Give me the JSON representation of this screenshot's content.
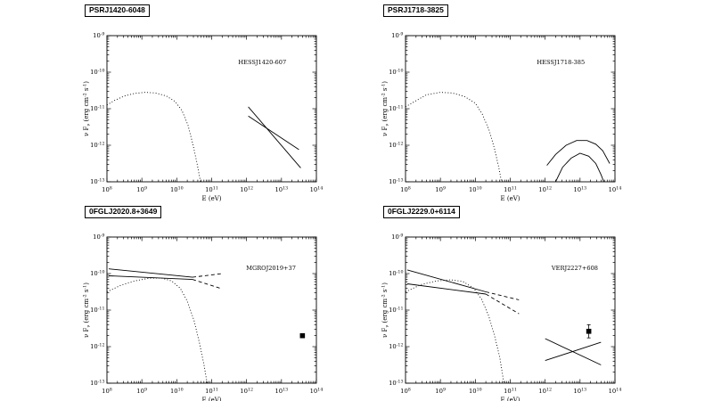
{
  "figure": {
    "layout": "2x2",
    "background": "#ffffff",
    "line_color": "#000000"
  },
  "chart_data": [
    {
      "type": "line",
      "title": "PSRJ1420-6048",
      "annotation": {
        "text": "HESSJ1420-607",
        "x": 12.45,
        "y": -9.78
      },
      "xlabel": "E (eV)",
      "ylabel": "ν F_{ν} (erg cm^{-2} s^{-1})",
      "xlim": [
        8,
        14
      ],
      "ylim": [
        -13,
        -9
      ],
      "xtick_labels": [
        "10^{8}",
        "10^{9}",
        "10^{10}",
        "10^{11}",
        "10^{12}",
        "10^{13}",
        "10^{14}"
      ],
      "ytick_labels": [
        "10^{-9}",
        "10^{-10}",
        "10^{-11}",
        "10^{-12}",
        "10^{-13}"
      ],
      "series": [
        {
          "name": "pulsar-sed-model",
          "style": "dotted",
          "points": [
            [
              8.0,
              -10.9
            ],
            [
              8.2,
              -10.78
            ],
            [
              8.5,
              -10.65
            ],
            [
              8.8,
              -10.58
            ],
            [
              9.1,
              -10.55
            ],
            [
              9.4,
              -10.57
            ],
            [
              9.7,
              -10.65
            ],
            [
              9.95,
              -10.8
            ],
            [
              10.15,
              -11.05
            ],
            [
              10.32,
              -11.45
            ],
            [
              10.47,
              -12.0
            ],
            [
              10.58,
              -12.5
            ],
            [
              10.68,
              -13.0
            ]
          ]
        },
        {
          "name": "hess-band-upper",
          "style": "solid",
          "points": [
            [
              12.05,
              -10.95
            ],
            [
              13.55,
              -12.62
            ]
          ]
        },
        {
          "name": "hess-band-lower",
          "style": "solid",
          "points": [
            [
              12.05,
              -11.2
            ],
            [
              13.5,
              -12.12
            ]
          ]
        }
      ]
    },
    {
      "type": "line",
      "title": "PSRJ1718-3825",
      "annotation": {
        "text": "HESSJ1718-385",
        "x": 12.45,
        "y": -9.78
      },
      "xlabel": "E (eV)",
      "ylabel": "ν F_{ν} (erg cm^{-2} s^{-1})",
      "xlim": [
        8,
        14
      ],
      "ylim": [
        -13,
        -9
      ],
      "xtick_labels": [
        "10^{8}",
        "10^{9}",
        "10^{10}",
        "10^{11}",
        "10^{12}",
        "10^{13}",
        "10^{14}"
      ],
      "ytick_labels": [
        "10^{-9}",
        "10^{-10}",
        "10^{-11}",
        "10^{-12}",
        "10^{-13}"
      ],
      "series": [
        {
          "name": "pulsar-sed-model",
          "style": "dotted",
          "points": [
            [
              8.0,
              -10.95
            ],
            [
              8.3,
              -10.78
            ],
            [
              8.6,
              -10.62
            ],
            [
              9.0,
              -10.55
            ],
            [
              9.35,
              -10.57
            ],
            [
              9.7,
              -10.67
            ],
            [
              10.0,
              -10.85
            ],
            [
              10.2,
              -11.15
            ],
            [
              10.4,
              -11.6
            ],
            [
              10.55,
              -12.1
            ],
            [
              10.67,
              -12.6
            ],
            [
              10.75,
              -13.0
            ]
          ]
        },
        {
          "name": "hess-band-upper",
          "style": "solid",
          "points": [
            [
              12.05,
              -12.55
            ],
            [
              12.3,
              -12.25
            ],
            [
              12.6,
              -12.0
            ],
            [
              12.9,
              -11.87
            ],
            [
              13.2,
              -11.87
            ],
            [
              13.45,
              -11.97
            ],
            [
              13.65,
              -12.15
            ],
            [
              13.85,
              -12.5
            ]
          ]
        },
        {
          "name": "hess-band-lower",
          "style": "solid",
          "points": [
            [
              12.3,
              -13.0
            ],
            [
              12.5,
              -12.6
            ],
            [
              12.75,
              -12.35
            ],
            [
              13.0,
              -12.22
            ],
            [
              13.25,
              -12.3
            ],
            [
              13.45,
              -12.5
            ],
            [
              13.6,
              -12.8
            ],
            [
              13.68,
              -13.0
            ]
          ]
        }
      ]
    },
    {
      "type": "line",
      "title": "0FGLJ2020.8+3649",
      "annotation": {
        "text": "MGROJ2019+37",
        "x": 12.7,
        "y": -9.9
      },
      "xlabel": "E (eV)",
      "ylabel": "ν F_{ν} (erg cm^{-2} s^{-1})",
      "xlim": [
        8,
        14
      ],
      "ylim": [
        -13,
        -9
      ],
      "xtick_labels": [
        "10^{8}",
        "10^{9}",
        "10^{10}",
        "10^{11}",
        "10^{12}",
        "10^{13}",
        "10^{14}"
      ],
      "ytick_labels": [
        "10^{-9}",
        "10^{-10}",
        "10^{-11}",
        "10^{-12}",
        "10^{-13}"
      ],
      "series": [
        {
          "name": "pulsar-sed-model",
          "style": "dotted",
          "points": [
            [
              8.0,
              -10.5
            ],
            [
              8.4,
              -10.32
            ],
            [
              8.8,
              -10.2
            ],
            [
              9.2,
              -10.13
            ],
            [
              9.55,
              -10.12
            ],
            [
              9.85,
              -10.2
            ],
            [
              10.1,
              -10.4
            ],
            [
              10.3,
              -10.75
            ],
            [
              10.5,
              -11.3
            ],
            [
              10.65,
              -11.9
            ],
            [
              10.78,
              -12.5
            ],
            [
              10.87,
              -13.0
            ]
          ]
        },
        {
          "name": "fermi-butterfly-upper",
          "style": "solid",
          "points": [
            [
              8.05,
              -9.87
            ],
            [
              10.45,
              -10.1
            ]
          ]
        },
        {
          "name": "fermi-butterfly-lower",
          "style": "solid",
          "points": [
            [
              8.05,
              -10.06
            ],
            [
              10.45,
              -10.16
            ]
          ]
        },
        {
          "name": "fermi-butterfly-ext-upper",
          "style": "dashed",
          "points": [
            [
              10.45,
              -10.1
            ],
            [
              11.3,
              -10.0
            ]
          ]
        },
        {
          "name": "fermi-butterfly-ext-lower",
          "style": "dashed",
          "points": [
            [
              10.45,
              -10.16
            ],
            [
              11.3,
              -10.42
            ]
          ]
        },
        {
          "name": "milagro-point",
          "style": "square",
          "points": [
            [
              13.6,
              -11.7
            ]
          ]
        }
      ]
    },
    {
      "type": "line",
      "title": "0FGLJ2229.0+6114",
      "annotation": {
        "text": "VERJ2227+608",
        "x": 12.85,
        "y": -9.9
      },
      "xlabel": "E (eV)",
      "ylabel": "ν F_{ν} (erg cm^{-2} s^{-1})",
      "xlim": [
        8,
        14
      ],
      "ylim": [
        -13,
        -9
      ],
      "xtick_labels": [
        "10^{8}",
        "10^{9}",
        "10^{10}",
        "10^{11}",
        "10^{12}",
        "10^{13}",
        "10^{14}"
      ],
      "ytick_labels": [
        "10^{-9}",
        "10^{-10}",
        "10^{-11}",
        "10^{-12}",
        "10^{-13}"
      ],
      "series": [
        {
          "name": "pulsar-sed-model",
          "style": "dotted",
          "points": [
            [
              8.0,
              -10.5
            ],
            [
              8.45,
              -10.3
            ],
            [
              8.9,
              -10.2
            ],
            [
              9.3,
              -10.17
            ],
            [
              9.65,
              -10.22
            ],
            [
              9.95,
              -10.4
            ],
            [
              10.18,
              -10.7
            ],
            [
              10.38,
              -11.15
            ],
            [
              10.55,
              -11.7
            ],
            [
              10.7,
              -12.3
            ],
            [
              10.82,
              -13.0
            ]
          ]
        },
        {
          "name": "fermi-butterfly-upper",
          "style": "solid",
          "points": [
            [
              8.05,
              -9.9
            ],
            [
              10.3,
              -10.5
            ]
          ]
        },
        {
          "name": "fermi-butterfly-lower",
          "style": "solid",
          "points": [
            [
              8.05,
              -10.28
            ],
            [
              10.3,
              -10.56
            ]
          ]
        },
        {
          "name": "fermi-butterfly-ext-upper",
          "style": "dashed",
          "points": [
            [
              10.3,
              -10.5
            ],
            [
              11.25,
              -10.72
            ]
          ]
        },
        {
          "name": "fermi-butterfly-ext-lower",
          "style": "dashed",
          "points": [
            [
              10.3,
              -10.56
            ],
            [
              11.25,
              -11.1
            ]
          ]
        },
        {
          "name": "tev-band-a",
          "style": "solid",
          "points": [
            [
              12.0,
              -11.78
            ],
            [
              13.6,
              -12.5
            ]
          ]
        },
        {
          "name": "tev-band-b",
          "style": "solid",
          "points": [
            [
              12.0,
              -12.38
            ],
            [
              13.6,
              -11.88
            ]
          ]
        },
        {
          "name": "veritas-point",
          "style": "square",
          "yerr": 0.18,
          "points": [
            [
              13.25,
              -11.58
            ]
          ]
        }
      ]
    }
  ]
}
